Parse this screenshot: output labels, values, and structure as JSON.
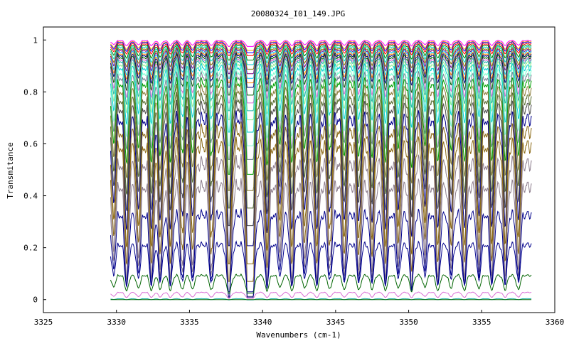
{
  "chart_data": {
    "type": "line",
    "title": "20080324_I01_149.JPG",
    "xlabel": "Wavenumbers (cm-1)",
    "ylabel": "Transmitance",
    "xlim": [
      3325,
      3360
    ],
    "ylim": [
      -0.05,
      1.05
    ],
    "x_ticks": [
      3325,
      3330,
      3335,
      3340,
      3345,
      3350,
      3355,
      3360
    ],
    "y_ticks": [
      0,
      0.2,
      0.4,
      0.6,
      0.8,
      1
    ],
    "x_tick_labels": [
      "3325",
      "3330",
      "3335",
      "3340",
      "3345",
      "3350",
      "3355",
      "3360"
    ],
    "y_tick_labels": [
      "0",
      "0.2",
      "0.4",
      "0.6",
      "0.8",
      "1"
    ],
    "grid": false,
    "legend": "none",
    "x_range": [
      3329.6,
      3358.4
    ],
    "absorption_lines_x": [
      3329.8,
      3330.7,
      3331.5,
      3332.4,
      3333.0,
      3333.7,
      3334.5,
      3335.2,
      3336.5,
      3337.7,
      3339.0,
      3339.3,
      3340.3,
      3341.2,
      3342.0,
      3342.9,
      3343.7,
      3344.6,
      3345.6,
      3346.6,
      3347.5,
      3348.4,
      3349.3,
      3350.2,
      3351.1,
      3352.0,
      3352.9,
      3353.8,
      3354.8,
      3355.7,
      3356.6,
      3357.5
    ],
    "series": [
      {
        "baseline": 1.0,
        "depth": 0.02,
        "color": "#ff00ff"
      },
      {
        "baseline": 0.997,
        "depth": 0.03,
        "color": "#ffa500"
      },
      {
        "baseline": 0.995,
        "depth": 0.035,
        "color": "#0000ff"
      },
      {
        "baseline": 0.99,
        "depth": 0.04,
        "color": "#ff0000"
      },
      {
        "baseline": 0.985,
        "depth": 0.05,
        "color": "#008000"
      },
      {
        "baseline": 0.98,
        "depth": 0.06,
        "color": "#00ced1"
      },
      {
        "baseline": 0.975,
        "depth": 0.07,
        "color": "#808000"
      },
      {
        "baseline": 0.97,
        "depth": 0.08,
        "color": "#800080"
      },
      {
        "baseline": 0.965,
        "depth": 0.09,
        "color": "#00bfff"
      },
      {
        "baseline": 0.96,
        "depth": 0.1,
        "color": "#ff8c00"
      },
      {
        "baseline": 0.955,
        "depth": 0.11,
        "color": "#000080"
      },
      {
        "baseline": 0.95,
        "depth": 0.13,
        "color": "#006400"
      },
      {
        "baseline": 0.945,
        "depth": 0.15,
        "color": "#da70d6"
      },
      {
        "baseline": 0.94,
        "depth": 0.17,
        "color": "#20b2aa"
      },
      {
        "baseline": 0.93,
        "depth": 0.19,
        "color": "#90ee90"
      },
      {
        "baseline": 0.92,
        "depth": 0.22,
        "color": "#00ced1"
      },
      {
        "baseline": 0.905,
        "depth": 0.25,
        "color": "#7fffd4"
      },
      {
        "baseline": 0.89,
        "depth": 0.28,
        "color": "#708090"
      },
      {
        "baseline": 0.87,
        "depth": 0.31,
        "color": "#00a000"
      },
      {
        "baseline": 0.845,
        "depth": 0.34,
        "color": "#8b7d3a"
      },
      {
        "baseline": 0.815,
        "depth": 0.37,
        "color": "#556b2f"
      },
      {
        "baseline": 0.785,
        "depth": 0.4,
        "color": "#4b4b4b"
      },
      {
        "baseline": 0.745,
        "depth": 0.43,
        "color": "#00008b"
      },
      {
        "baseline": 0.7,
        "depth": 0.45,
        "color": "#8b6914"
      },
      {
        "baseline": 0.645,
        "depth": 0.46,
        "color": "#8b6914"
      },
      {
        "baseline": 0.575,
        "depth": 0.45,
        "color": "#8b7b8b"
      },
      {
        "baseline": 0.48,
        "depth": 0.38,
        "color": "#8b7b8b"
      },
      {
        "baseline": 0.36,
        "depth": 0.28,
        "color": "#00008b"
      },
      {
        "baseline": 0.23,
        "depth": 0.16,
        "color": "#00008b"
      },
      {
        "baseline": 0.1,
        "depth": 0.06,
        "color": "#006400"
      },
      {
        "baseline": 0.03,
        "depth": 0.02,
        "color": "#da70d6"
      },
      {
        "baseline": 0.004,
        "depth": 0.004,
        "color": "#20b2aa"
      },
      {
        "baseline": 0.0,
        "depth": 0.0,
        "color": "#006400"
      }
    ]
  }
}
